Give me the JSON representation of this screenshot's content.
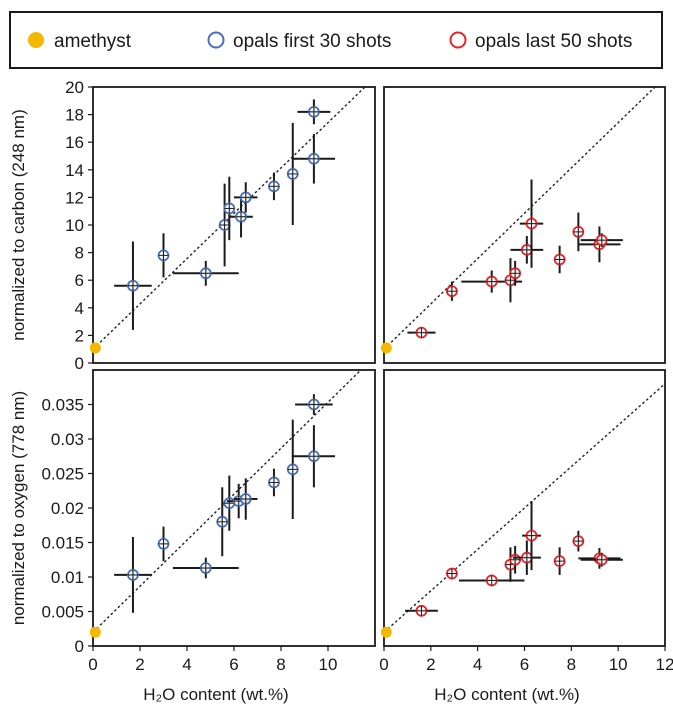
{
  "legend": {
    "items": [
      {
        "label": "amethyst",
        "color": "#f5b800",
        "marker": "filled-circle"
      },
      {
        "label": "opals first 30 shots",
        "color": "#4a6fb5",
        "marker": "open-circle"
      },
      {
        "label": "opals last 50 shots",
        "color": "#e0262b",
        "marker": "open-circle"
      }
    ]
  },
  "colors": {
    "amethyst": "#f5b800",
    "opals_first": "#4a6fb5",
    "opals_last": "#e0262b",
    "error_bar": "#1a1a1a",
    "fit_line": "#222222"
  },
  "chart_data": [
    {
      "type": "scatter",
      "panel": "top-left",
      "ylabel": "normalized to carbon (248 nm)",
      "xlabel": "",
      "xlim": [
        0,
        12
      ],
      "ylim": [
        0,
        20
      ],
      "yticks": [
        "0",
        "2",
        "4",
        "6",
        "8",
        "10",
        "12",
        "14",
        "16",
        "18",
        "20"
      ],
      "xticks": [],
      "fit_line": {
        "x1": 0,
        "y1": 1.0,
        "x2": 12,
        "y2": 20.7
      },
      "series": [
        {
          "name": "amethyst",
          "points": [
            {
              "x": 0.1,
              "y": 1.1
            }
          ]
        },
        {
          "name": "opals first 30 shots",
          "points": [
            {
              "x": 1.7,
              "y": 5.6,
              "xerr": 0.8,
              "yerr": 3.2
            },
            {
              "x": 3.0,
              "y": 7.8,
              "xerr": 0.0,
              "yerr": 1.6
            },
            {
              "x": 4.8,
              "y": 6.5,
              "xerr": 1.4,
              "yerr": 0.9
            },
            {
              "x": 5.6,
              "y": 10.0,
              "xerr": 0.0,
              "yerr": 3.0
            },
            {
              "x": 5.8,
              "y": 11.2,
              "xerr": 0.0,
              "yerr": 2.3
            },
            {
              "x": 6.3,
              "y": 10.6,
              "xerr": 0.5,
              "yerr": 1.5
            },
            {
              "x": 6.5,
              "y": 12.0,
              "xerr": 0.5,
              "yerr": 1.1
            },
            {
              "x": 7.7,
              "y": 12.8,
              "xerr": 0.0,
              "yerr": 1.0
            },
            {
              "x": 8.5,
              "y": 13.7,
              "xerr": 0.0,
              "yerr": 3.7
            },
            {
              "x": 9.4,
              "y": 18.2,
              "xerr": 0.7,
              "yerr": 0.9
            },
            {
              "x": 9.4,
              "y": 14.8,
              "xerr": 0.9,
              "yerr": 1.8
            }
          ]
        }
      ]
    },
    {
      "type": "scatter",
      "panel": "top-right",
      "ylabel": "",
      "xlabel": "",
      "xlim": [
        0,
        12
      ],
      "ylim": [
        0,
        20
      ],
      "yticks": [],
      "xticks": [],
      "fit_line": {
        "x1": 0,
        "y1": 1.0,
        "x2": 12,
        "y2": 20.7
      },
      "series": [
        {
          "name": "amethyst",
          "points": [
            {
              "x": 0.1,
              "y": 1.1
            }
          ]
        },
        {
          "name": "opals last 50 shots",
          "points": [
            {
              "x": 1.6,
              "y": 2.2,
              "xerr": 0.6,
              "yerr": 0.0
            },
            {
              "x": 2.9,
              "y": 5.2,
              "xerr": 0.0,
              "yerr": 0.7
            },
            {
              "x": 4.6,
              "y": 5.9,
              "xerr": 1.3,
              "yerr": 0.8
            },
            {
              "x": 5.4,
              "y": 6.0,
              "xerr": 0.0,
              "yerr": 1.6
            },
            {
              "x": 5.6,
              "y": 6.5,
              "xerr": 0.0,
              "yerr": 0.9
            },
            {
              "x": 6.1,
              "y": 8.2,
              "xerr": 0.7,
              "yerr": 1.0
            },
            {
              "x": 6.3,
              "y": 10.1,
              "xerr": 0.5,
              "yerr": 3.2
            },
            {
              "x": 7.5,
              "y": 7.5,
              "xerr": 0.0,
              "yerr": 1.0
            },
            {
              "x": 8.3,
              "y": 9.5,
              "xerr": 0.0,
              "yerr": 1.4
            },
            {
              "x": 9.2,
              "y": 8.6,
              "xerr": 0.9,
              "yerr": 1.3
            },
            {
              "x": 9.3,
              "y": 8.9,
              "xerr": 0.9,
              "yerr": 0.5
            }
          ]
        }
      ]
    },
    {
      "type": "scatter",
      "panel": "bottom-left",
      "ylabel": "normalized to oxygen (778 nm)",
      "xlabel": "H₂O content (wt.%)",
      "xlim": [
        0,
        12
      ],
      "ylim": [
        0,
        0.04
      ],
      "yticks": [
        "0",
        "0.005",
        "0.01",
        "0.015",
        "0.02",
        "0.025",
        "0.03",
        "0.035"
      ],
      "xticks": [
        "0",
        "2",
        "4",
        "6",
        "8",
        "10"
      ],
      "fit_line": {
        "x1": 0,
        "y1": 0.002,
        "x2": 12,
        "y2": 0.042
      },
      "series": [
        {
          "name": "amethyst",
          "points": [
            {
              "x": 0.1,
              "y": 0.002
            }
          ]
        },
        {
          "name": "opals first 30 shots",
          "points": [
            {
              "x": 1.7,
              "y": 0.0103,
              "xerr": 0.8,
              "yerr": 0.0055
            },
            {
              "x": 3.0,
              "y": 0.0148,
              "xerr": 0.0,
              "yerr": 0.0025
            },
            {
              "x": 4.8,
              "y": 0.0113,
              "xerr": 1.4,
              "yerr": 0.0015
            },
            {
              "x": 5.5,
              "y": 0.018,
              "xerr": 0.0,
              "yerr": 0.005
            },
            {
              "x": 5.8,
              "y": 0.0207,
              "xerr": 0.3,
              "yerr": 0.004
            },
            {
              "x": 6.2,
              "y": 0.021,
              "xerr": 0.5,
              "yerr": 0.0025
            },
            {
              "x": 6.5,
              "y": 0.0213,
              "xerr": 0.5,
              "yerr": 0.003
            },
            {
              "x": 7.7,
              "y": 0.0237,
              "xerr": 0.0,
              "yerr": 0.002
            },
            {
              "x": 8.5,
              "y": 0.0256,
              "xerr": 0.0,
              "yerr": 0.0072
            },
            {
              "x": 9.4,
              "y": 0.035,
              "xerr": 0.8,
              "yerr": 0.0015
            },
            {
              "x": 9.4,
              "y": 0.0275,
              "xerr": 0.9,
              "yerr": 0.0045
            }
          ]
        }
      ]
    },
    {
      "type": "scatter",
      "panel": "bottom-right",
      "ylabel": "",
      "xlabel": "H₂O content (wt.%)",
      "xlim": [
        0,
        12
      ],
      "ylim": [
        0,
        0.04
      ],
      "yticks": [],
      "xticks": [
        "0",
        "2",
        "4",
        "6",
        "8",
        "10",
        "12"
      ],
      "fit_line": {
        "x1": 0,
        "y1": 0.002,
        "x2": 12,
        "y2": 0.038
      },
      "series": [
        {
          "name": "amethyst",
          "points": [
            {
              "x": 0.1,
              "y": 0.002
            }
          ]
        },
        {
          "name": "opals last 50 shots",
          "points": [
            {
              "x": 1.6,
              "y": 0.0051,
              "xerr": 0.7,
              "yerr": 0.0
            },
            {
              "x": 2.9,
              "y": 0.0105,
              "xerr": 0.0,
              "yerr": 0.0005
            },
            {
              "x": 4.6,
              "y": 0.0095,
              "xerr": 1.4,
              "yerr": 0.0
            },
            {
              "x": 5.4,
              "y": 0.0118,
              "xerr": 0.0,
              "yerr": 0.0025
            },
            {
              "x": 5.6,
              "y": 0.0125,
              "xerr": 0.0,
              "yerr": 0.002
            },
            {
              "x": 6.1,
              "y": 0.0128,
              "xerr": 0.6,
              "yerr": 0.0025
            },
            {
              "x": 6.3,
              "y": 0.016,
              "xerr": 0.4,
              "yerr": 0.005
            },
            {
              "x": 7.5,
              "y": 0.0123,
              "xerr": 0.0,
              "yerr": 0.002
            },
            {
              "x": 8.3,
              "y": 0.0152,
              "xerr": 0.0,
              "yerr": 0.0015
            },
            {
              "x": 9.2,
              "y": 0.0127,
              "xerr": 0.9,
              "yerr": 0.0015
            },
            {
              "x": 9.3,
              "y": 0.0125,
              "xerr": 0.9,
              "yerr": 0.001
            }
          ]
        }
      ]
    }
  ]
}
